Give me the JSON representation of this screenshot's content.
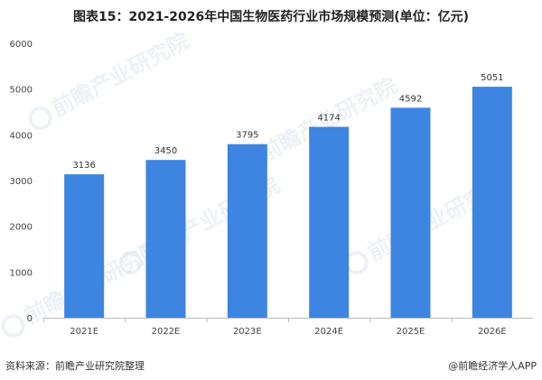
{
  "chart_data": {
    "type": "bar",
    "title": "图表15：2021-2026年中国生物医药行业市场规模预测(单位：亿元)",
    "categories": [
      "2021E",
      "2022E",
      "2023E",
      "2024E",
      "2025E",
      "2026E"
    ],
    "values": [
      3136,
      3450,
      3795,
      4174,
      4592,
      5051
    ],
    "yticks": [
      0,
      1000,
      2000,
      3000,
      4000,
      5000,
      6000
    ],
    "ylim": [
      0,
      6000
    ],
    "grid": false,
    "legend": "none",
    "bar_color": "#3d85e0",
    "xlabel": "",
    "ylabel": ""
  },
  "footer": {
    "source": "资料来源：前瞻产业研究院整理",
    "brand": "@前瞻经济学人APP"
  },
  "watermark": {
    "text": "前瞻产业研究院"
  }
}
